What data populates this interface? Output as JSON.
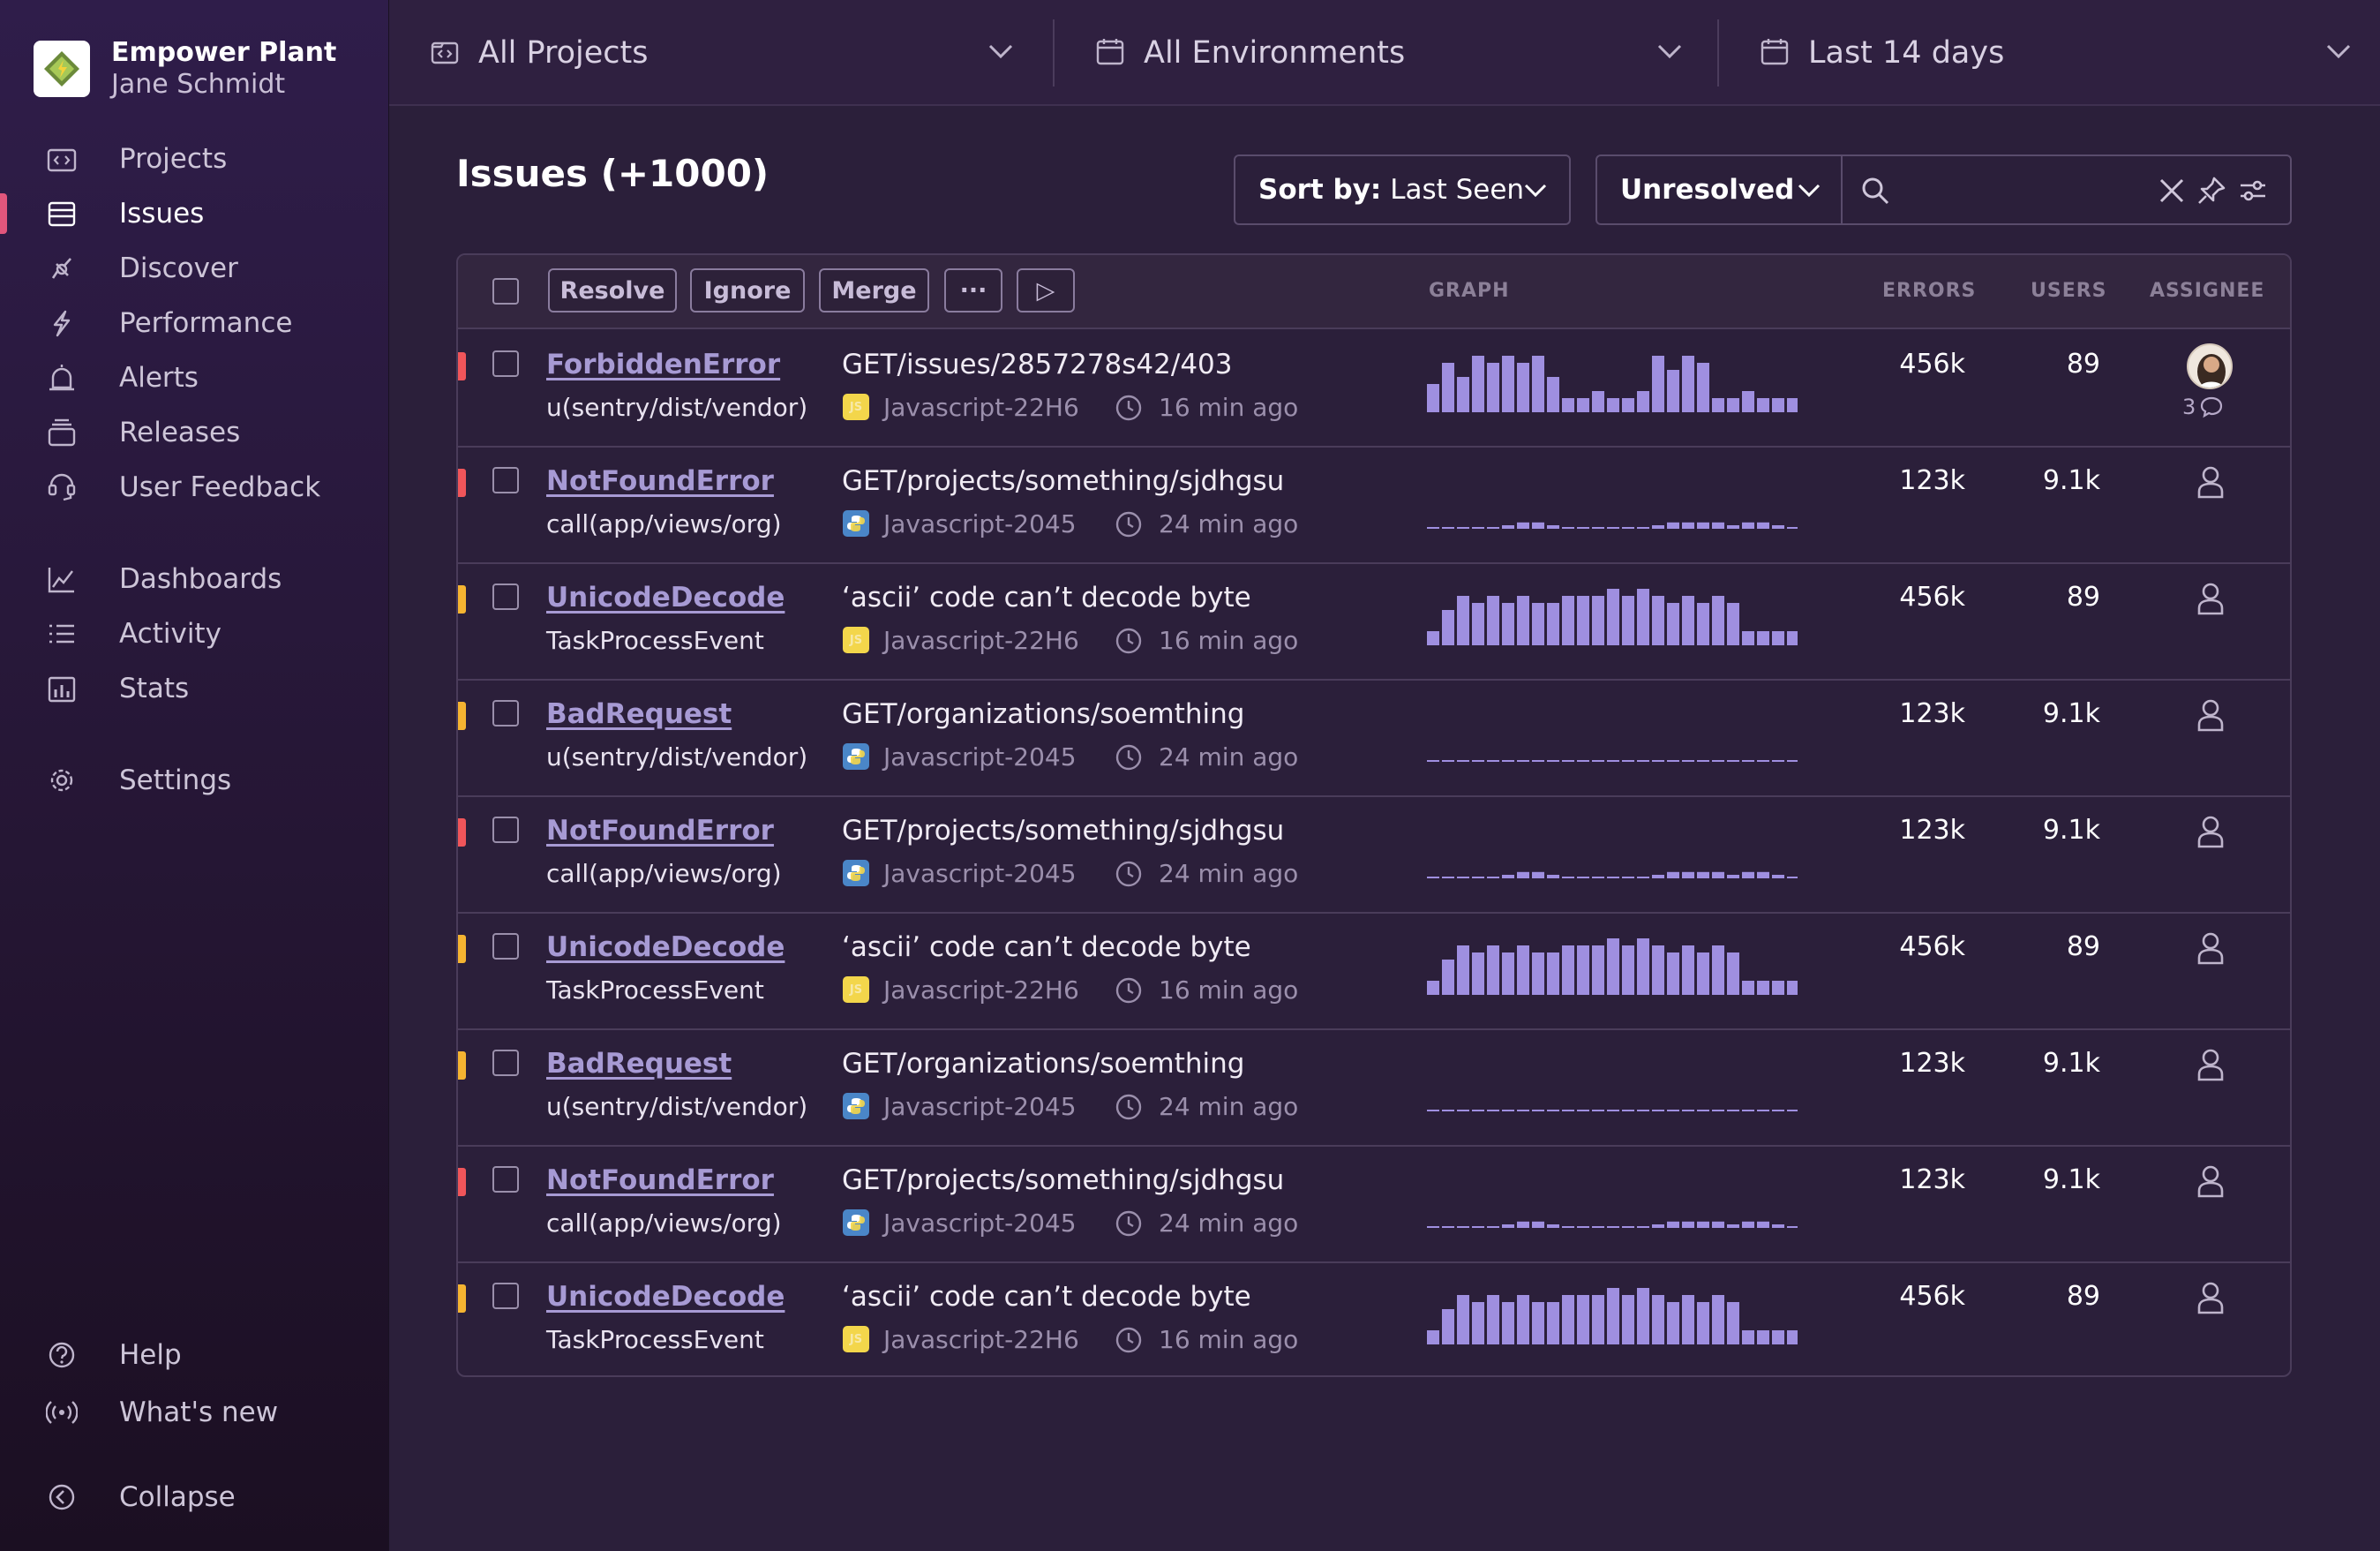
{
  "org": {
    "name": "Empower Plant",
    "user": "Jane Schmidt"
  },
  "nav": {
    "items": [
      {
        "label": "Projects",
        "icon": "projects-icon"
      },
      {
        "label": "Issues",
        "icon": "issues-icon",
        "active": true
      },
      {
        "label": "Discover",
        "icon": "discover-icon"
      },
      {
        "label": "Performance",
        "icon": "performance-icon"
      },
      {
        "label": "Alerts",
        "icon": "alerts-icon"
      },
      {
        "label": "Releases",
        "icon": "releases-icon"
      },
      {
        "label": "User Feedback",
        "icon": "user-feedback-icon"
      },
      {
        "label": "Dashboards",
        "icon": "dashboards-icon"
      },
      {
        "label": "Activity",
        "icon": "activity-icon"
      },
      {
        "label": "Stats",
        "icon": "stats-icon"
      },
      {
        "label": "Settings",
        "icon": "settings-icon"
      }
    ],
    "footer": [
      {
        "label": "Help",
        "icon": "help-icon"
      },
      {
        "label": "What's new",
        "icon": "broadcast-icon"
      },
      {
        "label": "Collapse",
        "icon": "collapse-icon"
      }
    ]
  },
  "topbar": {
    "projects": "All Projects",
    "environments": "All Environments",
    "date_range": "Last 14 days"
  },
  "page": {
    "title": "Issues (+1000)",
    "sort_prefix": "Sort by:",
    "sort_value": "Last Seen",
    "status": "Unresolved",
    "search_placeholder": ""
  },
  "table": {
    "actions": {
      "resolve": "Resolve",
      "ignore": "Ignore",
      "merge": "Merge",
      "more": "···",
      "play": "▷"
    },
    "headers": {
      "graph": "GRAPH",
      "errors": "ERRORS",
      "users": "USERS",
      "assignee": "ASSIGNEE"
    },
    "rows": [
      {
        "level_color": "#f0555a",
        "title": "ForbiddenError",
        "culprit": "u(sentry/dist/vendor)",
        "message": "GET/issues/2857278s42/403",
        "platform": "js",
        "project": "Javascript-22H6",
        "time": "16 min ago",
        "errors": "456k",
        "users": "89",
        "has_avatar": true,
        "comments": "3",
        "graph": [
          4,
          7,
          5,
          8,
          7,
          8,
          7,
          8,
          5,
          2,
          2,
          3,
          2,
          2,
          3,
          8,
          6,
          8,
          7,
          2,
          2,
          3,
          2,
          2,
          2
        ]
      },
      {
        "level_color": "#f0555a",
        "title": "NotFoundError",
        "culprit": "call(app/views/org)",
        "message": "GET/projects/something/sjdhgsu",
        "platform": "py",
        "project": "Javascript-2045",
        "time": "24 min ago",
        "errors": "123k",
        "users": "9.1k",
        "has_avatar": false,
        "graph": [
          0.2,
          0.2,
          0.2,
          0.2,
          0.2,
          0.5,
          0.9,
          0.9,
          0.5,
          0.2,
          0.2,
          0.2,
          0.2,
          0.2,
          0.2,
          0.5,
          0.9,
          0.9,
          0.9,
          0.9,
          0.5,
          0.9,
          0.9,
          0.5,
          0.2
        ]
      },
      {
        "level_color": "#f5b431",
        "title": "UnicodeDecode",
        "culprit": "TaskProcessEvent",
        "message": "‘ascii’ code can’t decode byte",
        "platform": "js",
        "project": "Javascript-22H6",
        "time": "16 min ago",
        "errors": "456k",
        "users": "89",
        "has_avatar": false,
        "graph": [
          2,
          5,
          7,
          6,
          7,
          6,
          7,
          6,
          6,
          7,
          7,
          7,
          8,
          7,
          8,
          7,
          6,
          7,
          6,
          7,
          6,
          2,
          2,
          2,
          2
        ]
      },
      {
        "level_color": "#f5b431",
        "title": "BadRequest",
        "culprit": "u(sentry/dist/vendor)",
        "message": "GET/organizations/soemthing",
        "platform": "py",
        "project": "Javascript-2045",
        "time": "24 min ago",
        "errors": "123k",
        "users": "9.1k",
        "has_avatar": false,
        "graph": [
          0.1,
          0.1,
          0.1,
          0.1,
          0.1,
          0.1,
          0.2,
          0.2,
          0.2,
          0.1,
          0.1,
          0.1,
          0.1,
          0.1,
          0.1,
          0.1,
          0.2,
          0.2,
          0.1,
          0.1,
          0.1,
          0.1,
          0.1,
          0.1,
          0.1
        ]
      },
      {
        "level_color": "#f0555a",
        "title": "NotFoundError",
        "culprit": "call(app/views/org)",
        "message": "GET/projects/something/sjdhgsu",
        "platform": "py",
        "project": "Javascript-2045",
        "time": "24 min ago",
        "errors": "123k",
        "users": "9.1k",
        "has_avatar": false,
        "graph": [
          0.2,
          0.2,
          0.2,
          0.2,
          0.2,
          0.5,
          0.9,
          0.9,
          0.5,
          0.2,
          0.2,
          0.2,
          0.2,
          0.2,
          0.2,
          0.5,
          0.9,
          0.9,
          0.9,
          0.9,
          0.5,
          0.9,
          0.9,
          0.5,
          0.2
        ]
      },
      {
        "level_color": "#f5b431",
        "title": "UnicodeDecode",
        "culprit": "TaskProcessEvent",
        "message": "‘ascii’ code can’t decode byte",
        "platform": "js",
        "project": "Javascript-22H6",
        "time": "16 min ago",
        "errors": "456k",
        "users": "89",
        "has_avatar": false,
        "graph": [
          2,
          5,
          7,
          6,
          7,
          6,
          7,
          6,
          6,
          7,
          7,
          7,
          8,
          7,
          8,
          7,
          6,
          7,
          6,
          7,
          6,
          2,
          2,
          2,
          2
        ]
      },
      {
        "level_color": "#f5b431",
        "title": "BadRequest",
        "culprit": "u(sentry/dist/vendor)",
        "message": "GET/organizations/soemthing",
        "platform": "py",
        "project": "Javascript-2045",
        "time": "24 min ago",
        "errors": "123k",
        "users": "9.1k",
        "has_avatar": false,
        "graph": [
          0.1,
          0.1,
          0.1,
          0.1,
          0.1,
          0.1,
          0.2,
          0.2,
          0.2,
          0.1,
          0.1,
          0.1,
          0.1,
          0.1,
          0.1,
          0.1,
          0.2,
          0.2,
          0.1,
          0.1,
          0.1,
          0.1,
          0.1,
          0.1,
          0.1
        ]
      },
      {
        "level_color": "#f0555a",
        "title": "NotFoundError",
        "culprit": "call(app/views/org)",
        "message": "GET/projects/something/sjdhgsu",
        "platform": "py",
        "project": "Javascript-2045",
        "time": "24 min ago",
        "errors": "123k",
        "users": "9.1k",
        "has_avatar": false,
        "graph": [
          0.2,
          0.2,
          0.2,
          0.2,
          0.2,
          0.5,
          0.9,
          0.9,
          0.5,
          0.2,
          0.2,
          0.2,
          0.2,
          0.2,
          0.2,
          0.5,
          0.9,
          0.9,
          0.9,
          0.9,
          0.5,
          0.9,
          0.9,
          0.5,
          0.2
        ]
      },
      {
        "level_color": "#f5b431",
        "title": "UnicodeDecode",
        "culprit": "TaskProcessEvent",
        "message": "‘ascii’ code can’t decode byte",
        "platform": "js",
        "project": "Javascript-22H6",
        "time": "16 min ago",
        "errors": "456k",
        "users": "89",
        "has_avatar": false,
        "graph": [
          2,
          5,
          7,
          6,
          7,
          6,
          7,
          6,
          6,
          7,
          7,
          7,
          8,
          7,
          8,
          7,
          6,
          7,
          6,
          7,
          6,
          2,
          2,
          2,
          2
        ]
      }
    ]
  },
  "colors": {
    "accent": "#a79ad4",
    "bar": "#9f8fe0",
    "error_level": "#f0555a",
    "warning_level": "#f5b431",
    "active_nav": "#e1567c"
  }
}
